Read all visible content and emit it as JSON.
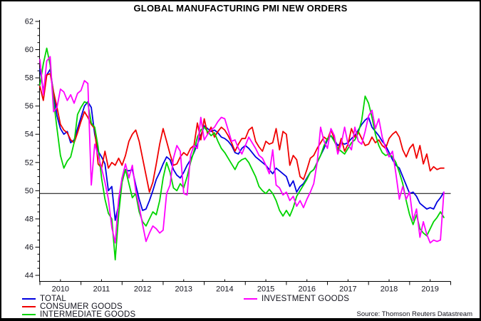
{
  "title": "GLOBAL MANUFACTURING PMI NEW ORDERS",
  "source_note": "Source: Thomson Reuters Datastream",
  "chart_data": {
    "type": "line",
    "frequency": "monthly",
    "x_start": "2010-01",
    "x_end": "2019-11",
    "x_tick_years": [
      2010,
      2011,
      2012,
      2013,
      2014,
      2015,
      2016,
      2017,
      2018,
      2019
    ],
    "ylim": [
      44,
      62
    ],
    "y_tick_step": 2,
    "y_minor_tick_step": 0.5,
    "reference_line_y": 49.8,
    "grid": "off",
    "legend_position": "bottom",
    "axis_color": "#000000",
    "label_color": "#14141e",
    "series": [
      {
        "name": "TOTAL",
        "color": "#0000e0",
        "values": [
          58.6,
          57.1,
          58.2,
          58.6,
          56.9,
          55.3,
          54.4,
          54.0,
          54.2,
          53.4,
          53.6,
          54.4,
          55.2,
          56.0,
          56.3,
          55.9,
          54.0,
          52.8,
          52.4,
          51.9,
          50.0,
          50.3,
          47.9,
          49.0,
          50.9,
          51.5,
          51.4,
          51.5,
          50.4,
          49.4,
          48.6,
          48.7,
          49.3,
          50.0,
          50.8,
          51.3,
          51.9,
          52.4,
          52.2,
          51.5,
          51.1,
          50.9,
          51.3,
          51.8,
          52.2,
          52.7,
          53.3,
          53.9,
          54.6,
          54.4,
          54.2,
          54.3,
          54.1,
          53.8,
          53.7,
          53.5,
          53.2,
          52.7,
          52.6,
          53.0,
          53.2,
          53.0,
          52.7,
          52.4,
          52.2,
          52.0,
          51.8,
          51.5,
          51.2,
          51.6,
          51.4,
          51.2,
          51.0,
          50.3,
          50.7,
          49.9,
          50.3,
          50.5,
          50.9,
          51.3,
          51.5,
          52.0,
          52.5,
          53.0,
          53.6,
          53.9,
          53.6,
          53.2,
          53.4,
          53.3,
          53.4,
          53.7,
          53.9,
          54.3,
          54.7,
          55.0,
          55.2,
          54.5,
          54.2,
          53.9,
          53.5,
          53.2,
          52.7,
          52.2,
          51.8,
          51.6,
          51.0,
          50.4,
          49.8,
          49.9,
          49.6,
          49.1,
          48.9,
          48.7,
          48.8,
          48.7,
          49.2,
          49.5,
          49.9
        ]
      },
      {
        "name": "CONSUMER GOODS",
        "color": "#f00000",
        "values": [
          57.4,
          56.4,
          58.2,
          58.3,
          57.0,
          55.9,
          54.7,
          54.3,
          54.1,
          53.6,
          53.4,
          54.1,
          54.9,
          55.6,
          55.2,
          54.7,
          54.4,
          51.9,
          51.6,
          52.8,
          51.6,
          52.0,
          51.8,
          52.3,
          51.8,
          52.5,
          53.5,
          54.0,
          54.3,
          53.5,
          52.3,
          51.1,
          49.9,
          50.6,
          51.9,
          53.3,
          54.4,
          53.5,
          52.6,
          51.8,
          51.9,
          52.4,
          52.7,
          52.5,
          53.0,
          53.2,
          54.8,
          53.6,
          55.1,
          54.0,
          54.5,
          53.8,
          54.2,
          54.5,
          54.3,
          53.9,
          53.4,
          52.8,
          53.3,
          53.7,
          53.7,
          54.3,
          54.5,
          53.5,
          53.1,
          52.8,
          53.5,
          53.3,
          53.4,
          54.4,
          52.9,
          54.2,
          54.0,
          51.8,
          52.5,
          52.2,
          51.0,
          50.8,
          51.5,
          52.3,
          52.5,
          53.0,
          53.4,
          53.8,
          53.6,
          54.3,
          53.7,
          52.8,
          53.7,
          52.8,
          53.3,
          54.4,
          53.8,
          54.2,
          53.7,
          53.2,
          53.3,
          53.8,
          53.4,
          53.6,
          53.2,
          53.0,
          53.7,
          54.0,
          54.2,
          53.8,
          52.9,
          52.4,
          53.0,
          53.3,
          52.3,
          53.2,
          51.9,
          52.6,
          51.4,
          51.7,
          51.5,
          51.6,
          51.6
        ]
      },
      {
        "name": "INTERMEDIATE GOODS",
        "color": "#00d400",
        "values": [
          57.5,
          59.0,
          60.1,
          58.9,
          56.4,
          54.4,
          52.5,
          51.6,
          52.1,
          52.4,
          53.4,
          55.4,
          55.9,
          56.3,
          56.2,
          54.8,
          54.5,
          53.1,
          50.9,
          49.4,
          48.4,
          48.0,
          45.1,
          48.3,
          50.6,
          51.5,
          50.5,
          49.5,
          49.8,
          48.5,
          47.8,
          47.5,
          48.0,
          48.5,
          48.3,
          49.3,
          50.9,
          52.0,
          51.3,
          50.2,
          50.0,
          50.5,
          50.2,
          51.0,
          52.0,
          52.8,
          53.8,
          54.3,
          54.5,
          54.2,
          53.9,
          54.1,
          53.5,
          53.0,
          52.7,
          52.3,
          51.9,
          51.5,
          52.0,
          52.2,
          52.3,
          52.0,
          51.5,
          51.0,
          50.3,
          50.0,
          49.8,
          50.1,
          49.8,
          49.3,
          48.6,
          48.2,
          48.6,
          48.2,
          48.8,
          49.6,
          50.0,
          50.4,
          50.8,
          51.3,
          51.5,
          52.0,
          52.5,
          53.2,
          53.7,
          53.9,
          53.5,
          53.0,
          52.8,
          52.6,
          53.0,
          53.4,
          53.6,
          54.1,
          55.0,
          56.7,
          56.2,
          55.2,
          54.0,
          53.2,
          52.7,
          52.5,
          52.6,
          52.4,
          52.0,
          51.3,
          50.5,
          49.3,
          48.3,
          47.6,
          48.3,
          47.3,
          47.0,
          46.8,
          47.3,
          47.8,
          48.1,
          48.5,
          48.1
        ]
      },
      {
        "name": "INVESTMENT GOODS",
        "color": "#ff00ff",
        "values": [
          59.3,
          56.8,
          59.2,
          59.5,
          55.6,
          55.9,
          57.2,
          57.0,
          56.4,
          56.8,
          56.2,
          56.9,
          57.1,
          57.8,
          57.6,
          50.4,
          53.3,
          52.5,
          51.6,
          50.6,
          49.4,
          47.4,
          46.3,
          49.4,
          50.9,
          51.9,
          50.9,
          51.8,
          50.0,
          48.9,
          47.6,
          46.4,
          47.0,
          47.5,
          47.3,
          47.0,
          47.2,
          49.8,
          50.4,
          52.3,
          53.2,
          52.8,
          49.8,
          49.7,
          52.5,
          53.2,
          53.0,
          55.2,
          53.6,
          54.0,
          54.3,
          54.5,
          54.9,
          55.2,
          55.1,
          54.3,
          53.5,
          53.6,
          53.0,
          52.6,
          53.2,
          53.8,
          53.4,
          53.0,
          52.5,
          52.3,
          51.8,
          51.2,
          52.9,
          50.4,
          50.2,
          49.7,
          49.9,
          49.3,
          49.6,
          48.9,
          49.3,
          48.8,
          49.4,
          49.9,
          50.5,
          52.0,
          54.5,
          53.5,
          53.0,
          54.4,
          53.9,
          52.6,
          53.3,
          54.5,
          53.3,
          52.9,
          54.5,
          53.5,
          53.3,
          54.2,
          55.3,
          55.7,
          54.4,
          55.1,
          53.8,
          53.0,
          52.4,
          52.8,
          51.2,
          49.4,
          50.3,
          49.4,
          49.9,
          47.9,
          48.7,
          46.7,
          47.8,
          46.9,
          46.3,
          46.5,
          46.4,
          46.5,
          49.9
        ]
      }
    ]
  }
}
